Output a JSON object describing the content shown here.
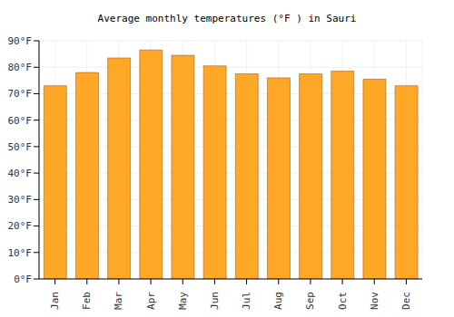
{
  "chart_data": {
    "type": "bar",
    "title": "Average monthly temperatures (°F ) in Sauri",
    "categories": [
      "Jan",
      "Feb",
      "Mar",
      "Apr",
      "May",
      "Jun",
      "Jul",
      "Aug",
      "Sep",
      "Oct",
      "Nov",
      "Dec"
    ],
    "values": [
      73,
      78,
      83.5,
      86.5,
      84.5,
      80.5,
      77.5,
      76,
      77.5,
      78.5,
      75.5,
      73
    ],
    "color": "#ffa726",
    "ylim": [
      0,
      90
    ],
    "yticks": [
      {
        "value": 0,
        "label": "0°F"
      },
      {
        "value": 10,
        "label": "10°F"
      },
      {
        "value": 20,
        "label": "20°F"
      },
      {
        "value": 30,
        "label": "30°F"
      },
      {
        "value": 40,
        "label": "40°F"
      },
      {
        "value": 50,
        "label": "50°F"
      },
      {
        "value": 60,
        "label": "60°F"
      },
      {
        "value": 70,
        "label": "70°F"
      },
      {
        "value": 80,
        "label": "80°F"
      },
      {
        "value": 90,
        "label": "90°F"
      }
    ],
    "grid": true
  }
}
